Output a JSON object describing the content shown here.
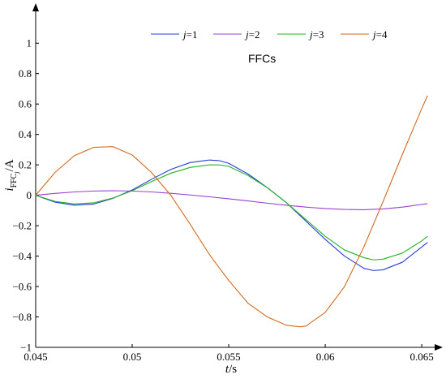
{
  "chart_data": {
    "type": "line",
    "xlabel": {
      "var": "t",
      "unit": "/s"
    },
    "ylabel": {
      "var": "i",
      "sub": "FFC",
      "subsub": "j",
      "unit": "/A"
    },
    "annotation": "FFCs",
    "xlim": [
      0.045,
      0.0655
    ],
    "ylim": [
      -1,
      1.22
    ],
    "x_ticks": [
      0.045,
      0.05,
      0.055,
      0.06,
      0.065
    ],
    "x_tick_labels": [
      "0.045",
      "0.05",
      "0.055",
      "0.06",
      "0.065"
    ],
    "y_ticks": [
      -1,
      -0.8,
      -0.6,
      -0.4,
      -0.2,
      0,
      0.2,
      0.4,
      0.6,
      0.8,
      1
    ],
    "y_tick_labels": [
      "−1",
      "−0.8",
      "−0.6",
      "−0.4",
      "−0.2",
      "0",
      "0.2",
      "0.4",
      "0.6",
      "0.8",
      "1"
    ],
    "legend_position": "top",
    "series": [
      {
        "name_var": "j",
        "name_val": "=1",
        "color": "#2a3bd6",
        "x": [
          0.045,
          0.046,
          0.047,
          0.048,
          0.049,
          0.05,
          0.051,
          0.052,
          0.053,
          0.054,
          0.0545,
          0.055,
          0.056,
          0.057,
          0.058,
          0.059,
          0.06,
          0.061,
          0.062,
          0.0625,
          0.063,
          0.064,
          0.065,
          0.0653
        ],
        "y": [
          0.0,
          -0.045,
          -0.065,
          -0.058,
          -0.02,
          0.035,
          0.105,
          0.17,
          0.215,
          0.232,
          0.228,
          0.21,
          0.14,
          0.05,
          -0.05,
          -0.17,
          -0.29,
          -0.4,
          -0.48,
          -0.495,
          -0.49,
          -0.44,
          -0.34,
          -0.31
        ]
      },
      {
        "name_var": "j",
        "name_val": "=2",
        "color": "#9a3fd0",
        "x": [
          0.045,
          0.046,
          0.047,
          0.048,
          0.049,
          0.05,
          0.051,
          0.052,
          0.053,
          0.054,
          0.055,
          0.056,
          0.057,
          0.058,
          0.059,
          0.06,
          0.061,
          0.062,
          0.063,
          0.064,
          0.065,
          0.0653
        ],
        "y": [
          0.0,
          0.012,
          0.022,
          0.028,
          0.03,
          0.028,
          0.022,
          0.013,
          0.002,
          -0.01,
          -0.023,
          -0.037,
          -0.052,
          -0.066,
          -0.078,
          -0.087,
          -0.093,
          -0.095,
          -0.09,
          -0.078,
          -0.06,
          -0.055
        ]
      },
      {
        "name_var": "j",
        "name_val": "=3",
        "color": "#22b322",
        "x": [
          0.045,
          0.046,
          0.047,
          0.048,
          0.049,
          0.05,
          0.051,
          0.052,
          0.053,
          0.054,
          0.0545,
          0.055,
          0.056,
          0.057,
          0.058,
          0.059,
          0.06,
          0.061,
          0.062,
          0.0625,
          0.063,
          0.064,
          0.065,
          0.0653
        ],
        "y": [
          0.0,
          -0.04,
          -0.057,
          -0.05,
          -0.018,
          0.03,
          0.09,
          0.145,
          0.183,
          0.2,
          0.2,
          0.19,
          0.13,
          0.05,
          -0.05,
          -0.16,
          -0.27,
          -0.36,
          -0.41,
          -0.425,
          -0.42,
          -0.38,
          -0.3,
          -0.27
        ]
      },
      {
        "name_var": "j",
        "name_val": "=4",
        "color": "#d2691e",
        "x": [
          0.045,
          0.046,
          0.047,
          0.048,
          0.049,
          0.05,
          0.051,
          0.052,
          0.053,
          0.054,
          0.055,
          0.056,
          0.057,
          0.058,
          0.0587,
          0.059,
          0.06,
          0.061,
          0.062,
          0.063,
          0.064,
          0.065,
          0.0653
        ],
        "y": [
          0.0,
          0.15,
          0.26,
          0.315,
          0.32,
          0.265,
          0.15,
          0.0,
          -0.19,
          -0.39,
          -0.56,
          -0.71,
          -0.8,
          -0.855,
          -0.865,
          -0.86,
          -0.77,
          -0.6,
          -0.34,
          -0.04,
          0.27,
          0.57,
          0.655
        ]
      }
    ]
  }
}
